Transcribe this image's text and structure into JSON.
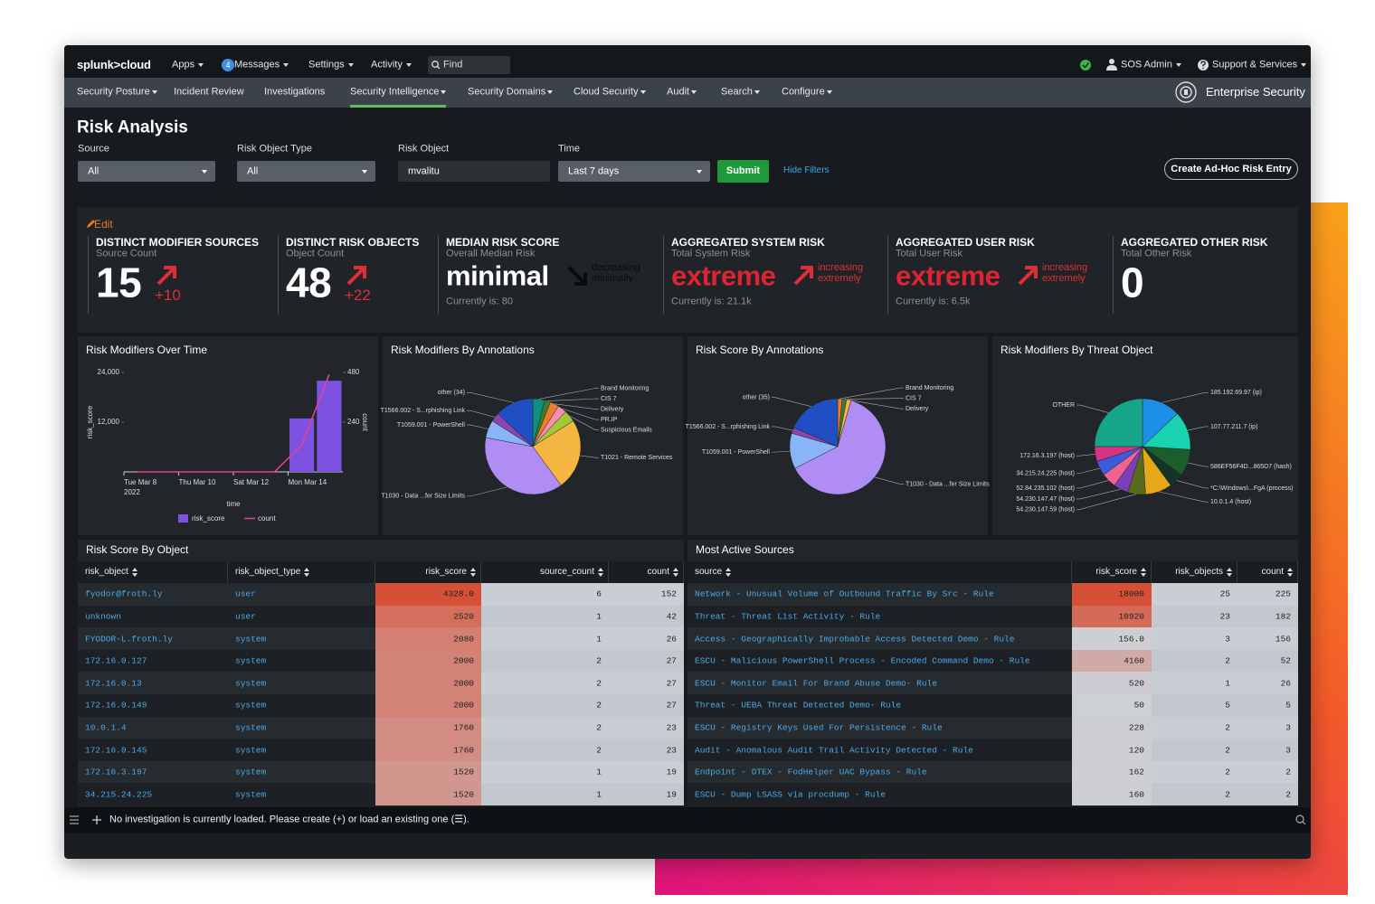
{
  "topbar": {
    "logo": "splunk>cloud",
    "menus": [
      {
        "label": "Apps",
        "dropdown": true
      },
      {
        "label": "Messages",
        "dropdown": true,
        "badge": "4"
      },
      {
        "label": "Settings",
        "dropdown": true
      },
      {
        "label": "Activity",
        "dropdown": true
      }
    ],
    "search_placeholder": "Find",
    "user": "SOS Admin",
    "help": "Support & Services"
  },
  "nav": {
    "items": [
      {
        "label": "Security Posture",
        "dropdown": true
      },
      {
        "label": "Incident Review"
      },
      {
        "label": "Investigations"
      },
      {
        "label": "Security Intelligence",
        "dropdown": true,
        "active": true
      },
      {
        "label": "Security Domains",
        "dropdown": true
      },
      {
        "label": "Cloud Security",
        "dropdown": true
      },
      {
        "label": "Audit",
        "dropdown": true
      },
      {
        "label": "Search",
        "dropdown": true
      },
      {
        "label": "Configure",
        "dropdown": true
      }
    ],
    "app_name": "Enterprise Security"
  },
  "page": {
    "title": "Risk Analysis",
    "filters": [
      {
        "label": "Source",
        "value": "All",
        "dropdown": true
      },
      {
        "label": "Risk Object Type",
        "value": "All",
        "dropdown": true
      },
      {
        "label": "Risk Object",
        "value": "mvalitu"
      },
      {
        "label": "Time",
        "value": "Last 7 days",
        "dropdown": true
      }
    ],
    "submit": "Submit",
    "hide_filters": "Hide Filters",
    "create_button": "Create Ad-Hoc Risk Entry"
  },
  "kpis": {
    "edit": "Edit",
    "items": [
      {
        "title": "DISTINCT MODIFIER SOURCES",
        "subtitle": "Source Count",
        "value": "15",
        "delta": "+10",
        "trend_direction": "up",
        "trend_color": "#dc2f36"
      },
      {
        "title": "DISTINCT RISK OBJECTS",
        "subtitle": "Object Count",
        "value": "48",
        "delta": "+22",
        "trend_direction": "up",
        "trend_color": "#dc2f36"
      },
      {
        "title": "MEDIAN RISK SCORE",
        "subtitle": "Overall Median Risk",
        "value": "minimal",
        "trend": "decreasing minimally",
        "current": "Currently is: 80",
        "trend_direction": "down",
        "trend_color": "#0b0b0b"
      },
      {
        "title": "AGGREGATED SYSTEM RISK",
        "subtitle": "Total System Risk",
        "value": "extreme",
        "value_color": "#dc2433",
        "trend": "increasing extremely",
        "current": "Currently is: 21.1k",
        "trend_direction": "up",
        "trend_color": "#dc2f36"
      },
      {
        "title": "AGGREGATED USER RISK",
        "subtitle": "Total User Risk",
        "value": "extreme",
        "value_color": "#dc2433",
        "trend": "increasing extremely",
        "current": "Currently is: 6.5k",
        "trend_direction": "up",
        "trend_color": "#dc2f36"
      },
      {
        "title": "AGGREGATED OTHER RISK",
        "subtitle": "Total Other Risk",
        "value": "0"
      }
    ]
  },
  "panels": [
    {
      "type": "bar_line",
      "title": "Risk Modifiers Over Time",
      "categories": [
        "Tue Mar 8",
        null,
        "Thu Mar 10",
        null,
        "Sat Mar 12",
        null,
        "Mon Mar 14",
        null
      ],
      "x_sublabel": "2022",
      "x_label": "time",
      "y_label": "risk_score",
      "y2_label": "count",
      "ylim": [
        0,
        24000
      ],
      "yticks": [
        {
          "value": 12000,
          "label": "12,000"
        },
        {
          "value": 24000,
          "label": "24,000"
        }
      ],
      "y2lim": [
        0,
        480
      ],
      "y2ticks": [
        240,
        480
      ],
      "series": [
        {
          "name": "risk_score",
          "type": "bar",
          "color": "#7d52e0",
          "values": [
            0,
            0,
            0,
            0,
            0,
            0,
            12900,
            22000
          ]
        },
        {
          "name": "count",
          "type": "line",
          "axis": "y2",
          "color": "#e83e9c",
          "values": [
            0,
            0,
            0,
            0,
            0,
            0,
            130,
            470
          ]
        }
      ]
    },
    {
      "type": "pie",
      "title": "Risk Modifiers By Annotations",
      "labels": [
        "Brand Monitoring",
        "CIS 7",
        "Delivery",
        "PR.IP",
        "Suspicious Emails",
        "T1021 - Remote Services",
        "T1030 - Data ...fer Size Limits",
        "T1059.001 - PowerShell",
        "T1566.002 - S...rphishing Link",
        "other (34)"
      ],
      "values": [
        4,
        2,
        3,
        3,
        4,
        24,
        38,
        6,
        3,
        13
      ],
      "colors": [
        "#0f8f7f",
        "#3b7d2a",
        "#f07b2a",
        "#f48fb1",
        "#a4c639",
        "#f5b642",
        "#b08cf5",
        "#8ab4f8",
        "#8e44ad",
        "#1f4fc2"
      ]
    },
    {
      "type": "pie",
      "title": "Risk Score By Annotations",
      "labels": [
        "Brand Monitoring",
        "CIS 7",
        "Delivery",
        "T1030 - Data ...fer Size Limits",
        "T1059.001 - PowerShell",
        "T1566.002 - S...rphishing Link",
        "other (35)"
      ],
      "values": [
        1.5,
        1.5,
        1.5,
        63,
        12,
        2,
        18.5
      ],
      "colors": [
        "#f07b2a",
        "#3b7d2a",
        "#f5b642",
        "#b08cf5",
        "#8ab4f8",
        "#8e44ad",
        "#1f4fc2"
      ]
    },
    {
      "type": "pie",
      "title": "Risk Modifiers By Threat Object",
      "labels": [
        "185.192.69.97 (ip)",
        "107.77.211.7 (ip)",
        "586EF56F4D...865D7 (hash)",
        "*C:\\Windows\\...FgA (process)",
        "10.0.1.4 (host)",
        "54.230.147.59 (host)",
        "54.230.147.47 (host)",
        "52.84.235.102 (host)",
        "34.215.24.225 (host)",
        "172.16.3.197 (host)",
        "OTHER"
      ],
      "values": [
        13,
        13,
        9,
        5,
        9,
        6,
        5,
        5,
        5,
        5,
        25
      ],
      "colors": [
        "#1e8fe6",
        "#19d3b0",
        "#1b5e2b",
        "#123524",
        "#e6a817",
        "#5b6b1e",
        "#7b3fb8",
        "#f06292",
        "#3b5bdb",
        "#d63384",
        "#17a589"
      ]
    }
  ],
  "tables": [
    {
      "title": "Risk Score By Object",
      "columns": [
        "risk_object",
        "risk_object_type",
        "risk_score",
        "source_count",
        "count"
      ],
      "rows": [
        [
          "fyodor@froth.ly",
          "user",
          "4328.0",
          "6",
          "152"
        ],
        [
          "unknown",
          "user",
          "2520",
          "1",
          "42"
        ],
        [
          "FYODOR-L.froth.ly",
          "system",
          "2080",
          "1",
          "26"
        ],
        [
          "172.16.0.127",
          "system",
          "2000",
          "2",
          "27"
        ],
        [
          "172.16.0.13",
          "system",
          "2000",
          "2",
          "27"
        ],
        [
          "172.16.0.149",
          "system",
          "2000",
          "2",
          "27"
        ],
        [
          "10.0.1.4",
          "system",
          "1760",
          "2",
          "23"
        ],
        [
          "172.16.0.145",
          "system",
          "1760",
          "2",
          "23"
        ],
        [
          "172.16.3.197",
          "system",
          "1520",
          "1",
          "19"
        ],
        [
          "34.215.24.225",
          "system",
          "1520",
          "1",
          "19"
        ]
      ]
    },
    {
      "title": "Most Active Sources",
      "columns": [
        "source",
        "risk_score",
        "risk_objects",
        "count"
      ],
      "rows": [
        [
          "Network - Unusual Volume of Outbound Traffic By Src - Rule",
          "18000",
          "25",
          "225"
        ],
        [
          "Threat - Threat List Activity - Rule",
          "10920",
          "23",
          "182"
        ],
        [
          "Access - Geographically Improbable Access Detected Demo - Rule",
          "156.0",
          "3",
          "156"
        ],
        [
          "ESCU - Malicious PowerShell Process - Encoded Command Demo - Rule",
          "4160",
          "2",
          "52"
        ],
        [
          "ESCU - Monitor Email For Brand Abuse Demo- Rule",
          "520",
          "1",
          "26"
        ],
        [
          "Threat - UEBA Threat Detected Demo- Rule",
          "50",
          "5",
          "5"
        ],
        [
          "ESCU - Registry Keys Used For Persistence - Rule",
          "228",
          "2",
          "3"
        ],
        [
          "Audit - Anomalous Audit Trail Activity Detected - Rule",
          "120",
          "2",
          "3"
        ],
        [
          "Endpoint - DTEX - FodHelper UAC Bypass - Rule",
          "162",
          "2",
          "2"
        ],
        [
          "ESCU - Dump LSASS via procdump - Rule",
          "160",
          "2",
          "2"
        ]
      ]
    }
  ],
  "status_bar": {
    "message": "No investigation is currently loaded. Please create (+) or load an existing one (☰)."
  }
}
